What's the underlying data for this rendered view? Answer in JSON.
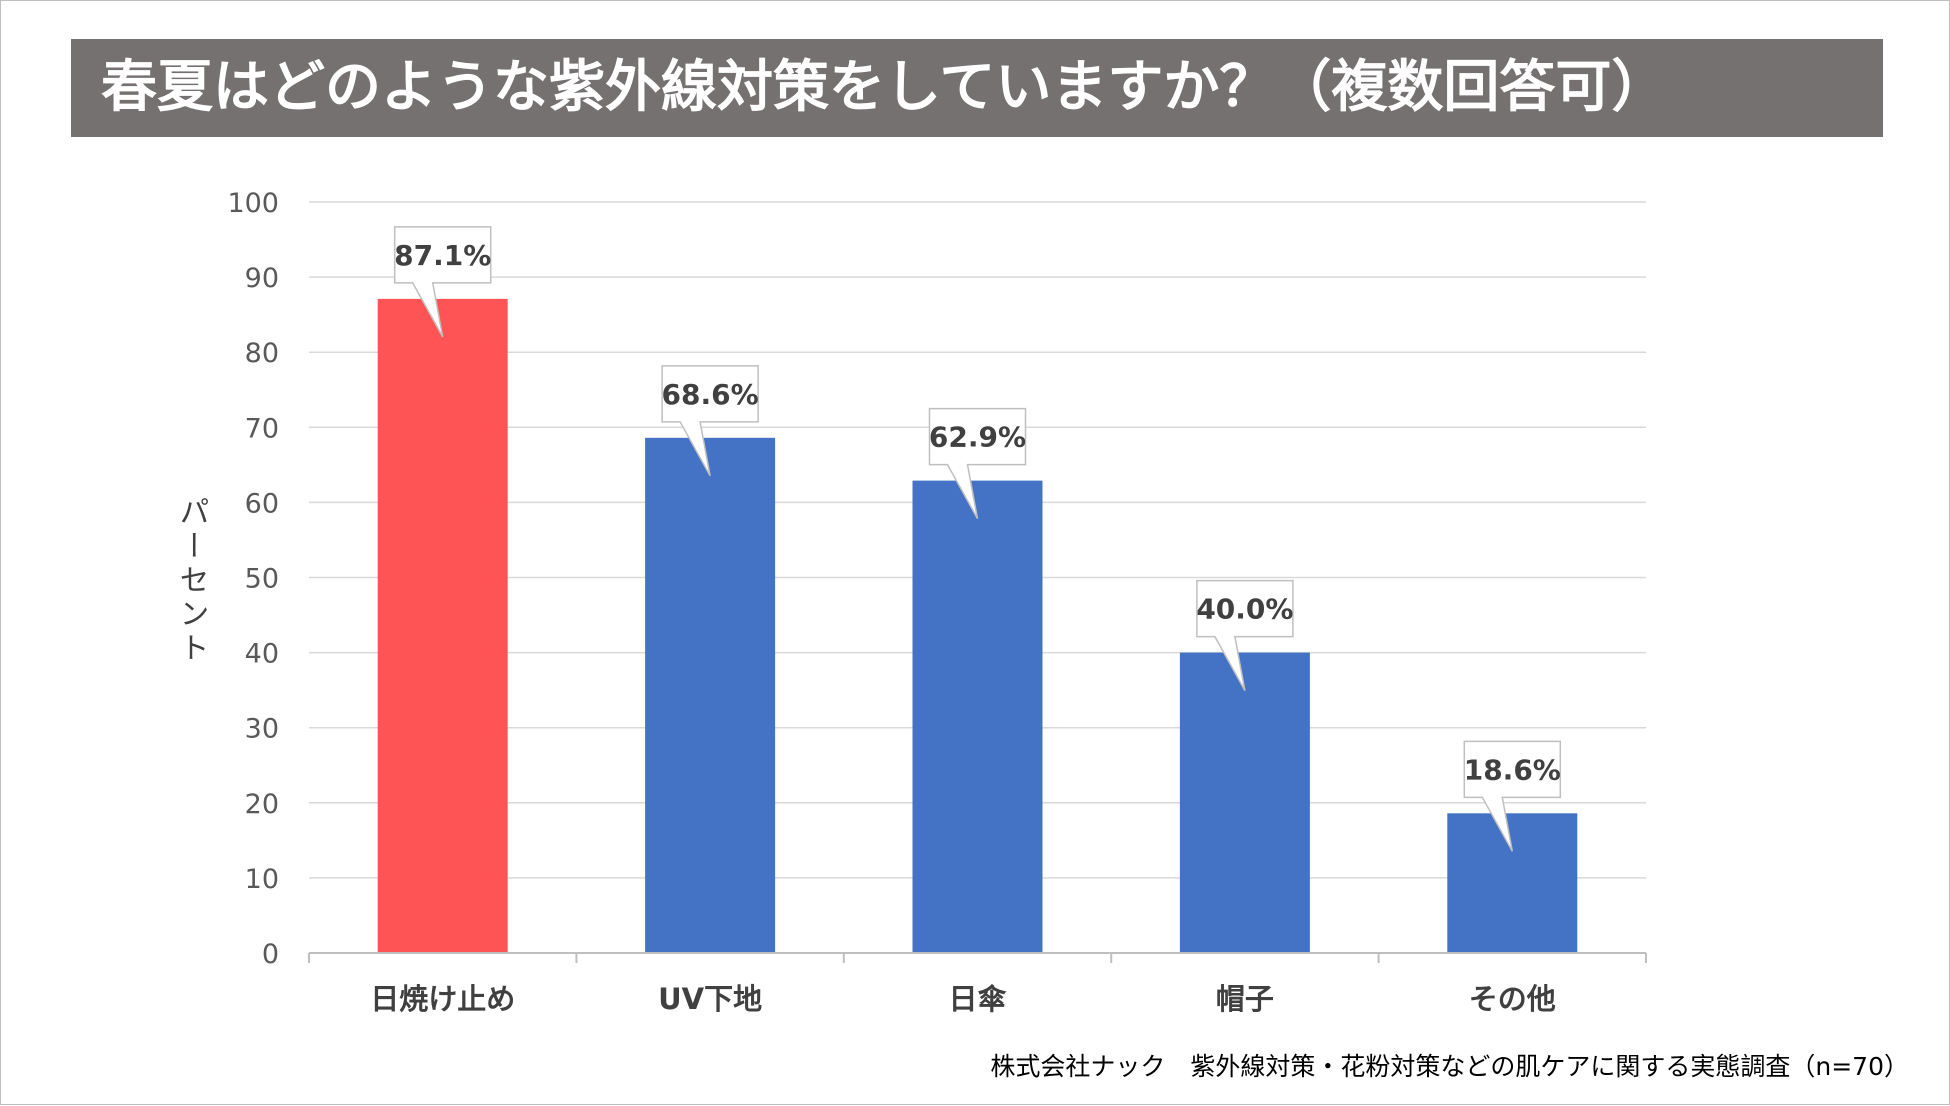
{
  "chart_data": {
    "type": "bar",
    "title": "春夏はどのような紫外線対策をしていますか？（複数回答可）",
    "xlabel": "",
    "ylabel": "パーセント",
    "ylim": [
      0,
      100
    ],
    "yticks": [
      "0",
      "10",
      "20",
      "30",
      "40",
      "50",
      "60",
      "70",
      "80",
      "90",
      "100"
    ],
    "grid": true,
    "categories": [
      "日焼け止め",
      "UV下地",
      "日傘",
      "帽子",
      "その他"
    ],
    "values": [
      87.1,
      68.6,
      62.9,
      40.0,
      18.6
    ],
    "data_labels": [
      "87.1%",
      "68.6%",
      "62.9%",
      "40.0%",
      "18.6%"
    ],
    "highlight_color": "#ff5456",
    "bar_color": "#4472c4",
    "highlight_index": 0
  },
  "footer": {
    "source": "株式会社ナック　紫外線対策・花粉対策などの肌ケアに関する実態調査（n=70）"
  }
}
